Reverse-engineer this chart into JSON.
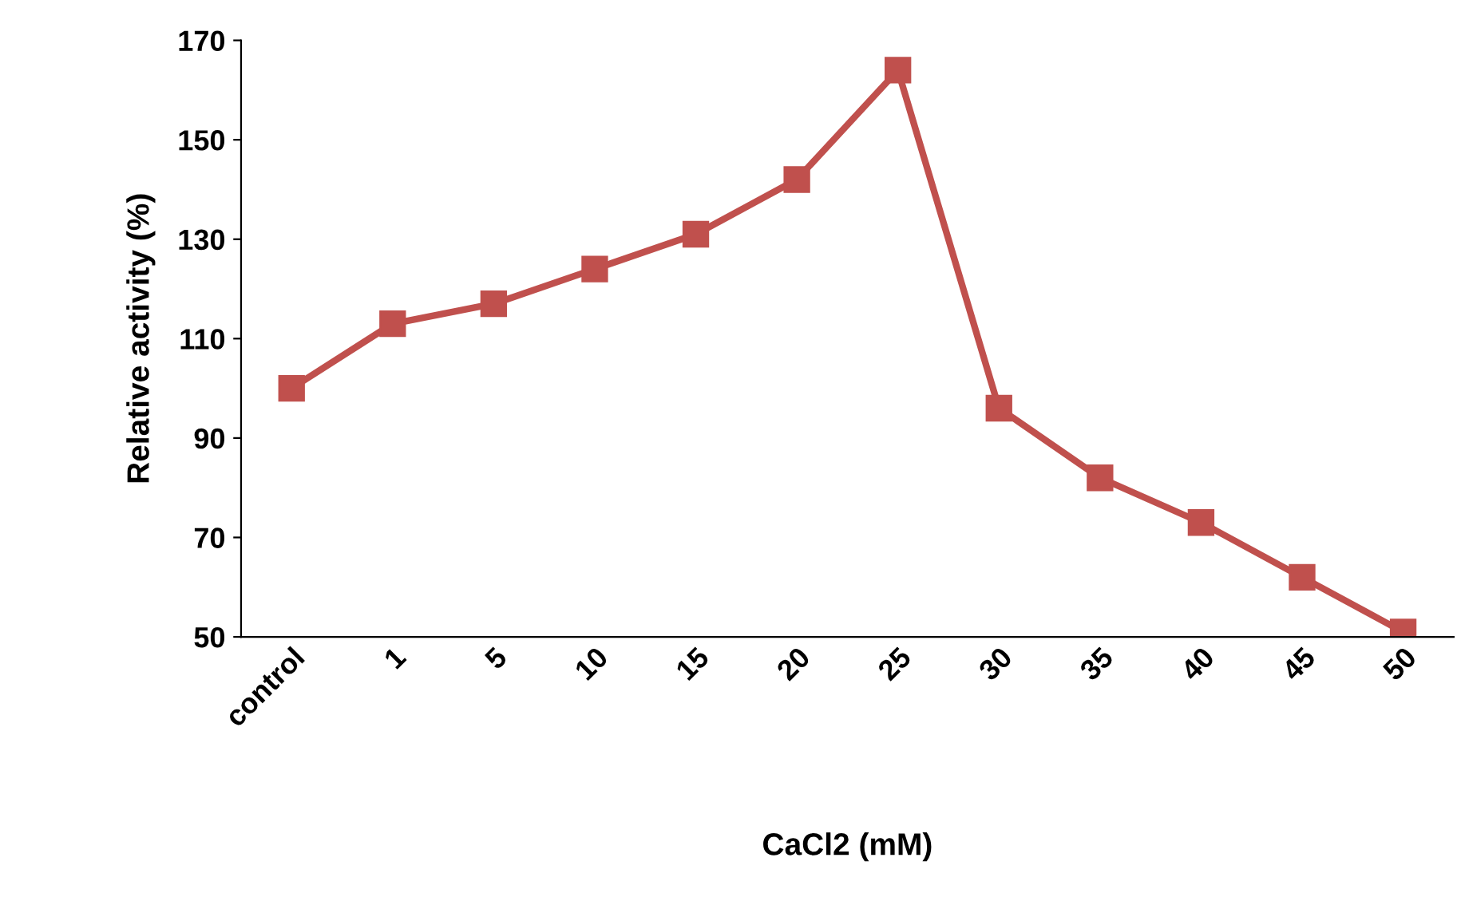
{
  "chart_data": {
    "type": "line",
    "xlabel": "CaCl2 (mM)",
    "ylabel": "Relative activity (%)",
    "categories": [
      "control",
      "1",
      "5",
      "10",
      "15",
      "20",
      "25",
      "30",
      "35",
      "40",
      "45",
      "50"
    ],
    "series": [
      {
        "color": "#c0504d",
        "values": [
          100,
          113,
          117,
          124,
          131,
          142,
          164,
          96,
          82,
          73,
          62,
          51
        ]
      }
    ],
    "ylim": [
      50,
      170
    ],
    "yticks": [
      50,
      70,
      90,
      110,
      130,
      150,
      170
    ],
    "marker": "square",
    "line_style": "solid",
    "grid": false
  }
}
